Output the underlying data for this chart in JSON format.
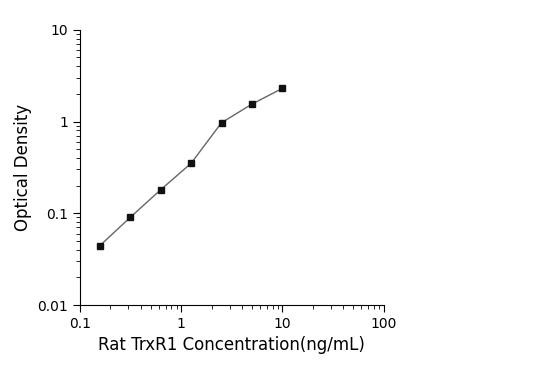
{
  "x": [
    0.156,
    0.313,
    0.625,
    1.25,
    2.5,
    5.0,
    10.0
  ],
  "y": [
    0.044,
    0.09,
    0.18,
    0.35,
    0.97,
    1.55,
    2.3
  ],
  "xlabel": "Rat TrxR1 Concentration(ng/mL)",
  "ylabel": "Optical Density",
  "xlim": [
    0.1,
    100
  ],
  "ylim": [
    0.01,
    10
  ],
  "line_color": "#666666",
  "marker": "s",
  "marker_color": "#111111",
  "marker_size": 5,
  "line_width": 1.0,
  "background_color": "#ffffff",
  "xlabel_fontsize": 12,
  "ylabel_fontsize": 12,
  "tick_fontsize": 10,
  "xticks": [
    0.1,
    1,
    10,
    100
  ],
  "xticklabels": [
    "0.1",
    "1",
    "10",
    "100"
  ],
  "yticks": [
    0.01,
    0.1,
    1,
    10
  ],
  "yticklabels": [
    "0.01",
    "0.1",
    "1",
    "10"
  ]
}
